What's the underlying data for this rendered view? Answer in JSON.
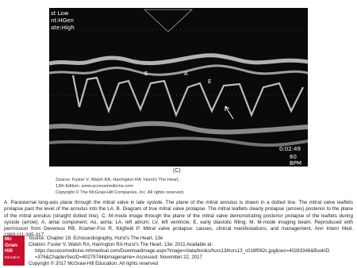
{
  "figure": {
    "overlay": {
      "line1": "st Low",
      "line2": "nt:HGen",
      "line3": "ate:High",
      "wave_e1": "E",
      "wave_a": "A",
      "wave_e2": "E",
      "time": "0:02:49",
      "rate": "60",
      "rate_unit": "BPM"
    },
    "panel_label": "(C)",
    "source_lines": [
      "Source: Fuster V, Walsh RA, Harrington RA: Hurst's The Heart,",
      "13th Edition: www.accessmedicine.com"
    ],
    "copyright": "Copyright © The McGraw-Hill Companies, Inc. All rights reserved."
  },
  "caption": "A. Parasternal long-axis plane through the mitral valve in late systole. The plane of the mitral annulus is drawn in a dotted line. The mitral valve leaflets prolapse past the level of the annulus into the LA. B. Diagram of true mitral valve prolapse. The mitral leaflets clearly prolapse (arrows) posterior to the plane of the mitral annulus (straight dotted line). C. M-mode image through the plane of the mitral valve demonstrating posterior prolapse of the leaflets during systole (arrow). A, atrial component; Ao, aorta; LA, left atrium; LV, left ventricle; E, early diastolic filling; M, M-mode imaging beam. Reproduced with permission from Devereux RB, Kramer-Fox R, Kligfield P. Mitral valve prolapse: causes, clinical manifestations, and management. Ann Intern Med. 1989;111:305-317.",
  "logo": [
    "Mc",
    "Graw",
    "Hill",
    "Education"
  ],
  "citation": {
    "source": "Source: Chapter 18. Echocardiography, Hurst's The Heart, 13e",
    "citation": "Citation: Fuster V, Walsh RA, Harrington RA  Hurst's The Heart, 13e; 2011 Available at:",
    "url": "https://accessmedicine.mhmedical.com/Downloadimage.aspx?image=/data/books/hurs13/hurs13_c018f082c.jpg&sec=40283346&BookID",
    "url_cont": "=376&ChapterSecID=40279744&imagename= Accessed: November 22, 2017",
    "copyright": "Copyright © 2017 McGraw-Hill Education. All rights reserved"
  }
}
